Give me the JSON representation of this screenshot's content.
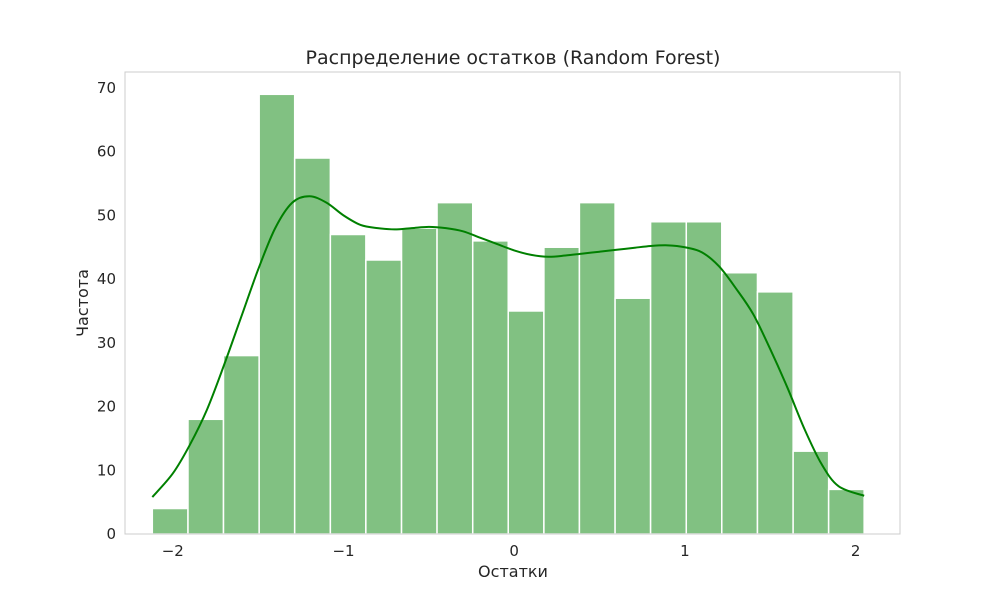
{
  "chart_data": {
    "type": "bar",
    "title": "Распределение остатков (Random Forest)",
    "xlabel": "Остатки",
    "ylabel": "Частота",
    "xlim": [
      -2.28,
      2.26
    ],
    "ylim": [
      0,
      72.5
    ],
    "xticks": [
      -2,
      -1,
      0,
      1,
      2
    ],
    "xtick_labels": [
      "−2",
      "−1",
      "0",
      "1",
      "2"
    ],
    "yticks": [
      0,
      10,
      20,
      30,
      40,
      50,
      60,
      70
    ],
    "ytick_labels": [
      "0",
      "10",
      "20",
      "30",
      "40",
      "50",
      "60",
      "70"
    ],
    "grid": false,
    "bin_edges": [
      -2.12,
      -1.911,
      -1.703,
      -1.494,
      -1.286,
      -1.077,
      -0.869,
      -0.66,
      -0.452,
      -0.243,
      -0.035,
      0.174,
      0.382,
      0.591,
      0.799,
      1.008,
      1.216,
      1.425,
      1.634,
      1.842,
      2.05
    ],
    "values": [
      4,
      18,
      28,
      69,
      59,
      47,
      43,
      48,
      52,
      46,
      35,
      45,
      52,
      37,
      49,
      49,
      41,
      38,
      13,
      7
    ],
    "kde": {
      "x": [
        -2.12,
        -2.0,
        -1.9,
        -1.8,
        -1.7,
        -1.6,
        -1.5,
        -1.4,
        -1.3,
        -1.2,
        -1.1,
        -1.0,
        -0.9,
        -0.8,
        -0.7,
        -0.6,
        -0.5,
        -0.4,
        -0.3,
        -0.2,
        -0.1,
        0.0,
        0.1,
        0.2,
        0.3,
        0.4,
        0.5,
        0.6,
        0.7,
        0.8,
        0.9,
        1.0,
        1.1,
        1.2,
        1.3,
        1.4,
        1.5,
        1.6,
        1.7,
        1.8,
        1.9,
        2.05
      ],
      "y": [
        5.8,
        9.5,
        14.0,
        19.5,
        26.5,
        34.0,
        41.5,
        48.0,
        52.0,
        53.0,
        52.0,
        50.0,
        48.5,
        48.0,
        47.8,
        48.0,
        48.2,
        48.0,
        47.5,
        46.5,
        45.5,
        44.5,
        43.8,
        43.5,
        43.7,
        44.0,
        44.3,
        44.6,
        44.9,
        45.2,
        45.3,
        45.0,
        44.2,
        42.0,
        38.5,
        34.5,
        29.0,
        23.0,
        16.5,
        11.0,
        7.5,
        6.0
      ]
    },
    "colors": {
      "bar_fill": "#81c182",
      "bar_edge": "#ffffff",
      "kde": "#008000",
      "frame": "#cccccc",
      "text": "#262626"
    }
  }
}
